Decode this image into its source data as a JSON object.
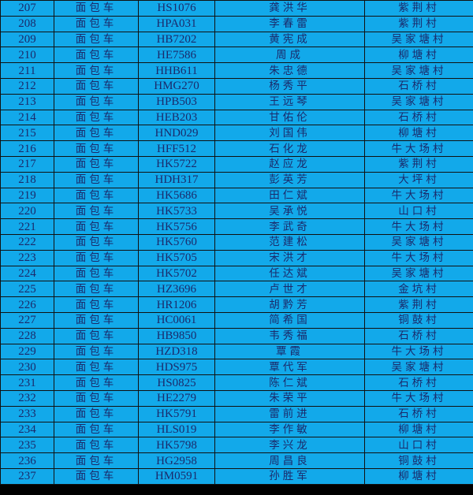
{
  "table": {
    "rows": [
      {
        "no": "207",
        "type": "面包车",
        "plate": "HS1076",
        "name": "龚洪华",
        "village": "紫荆村"
      },
      {
        "no": "208",
        "type": "面包车",
        "plate": "HPA031",
        "name": "李春雷",
        "village": "紫荆村"
      },
      {
        "no": "209",
        "type": "面包车",
        "plate": "HB7202",
        "name": "黄宪成",
        "village": "吴家塘村"
      },
      {
        "no": "210",
        "type": "面包车",
        "plate": "HE7586",
        "name": "周成",
        "village": "柳塘村"
      },
      {
        "no": "211",
        "type": "面包车",
        "plate": "HHB611",
        "name": "朱忠德",
        "village": "吴家塘村"
      },
      {
        "no": "212",
        "type": "面包车",
        "plate": "HMG270",
        "name": "杨秀平",
        "village": "石桥村"
      },
      {
        "no": "213",
        "type": "面包车",
        "plate": "HPB503",
        "name": "王远琴",
        "village": "吴家塘村"
      },
      {
        "no": "214",
        "type": "面包车",
        "plate": "HEB203",
        "name": "甘佑伦",
        "village": "石桥村"
      },
      {
        "no": "215",
        "type": "面包车",
        "plate": "HND029",
        "name": "刘国伟",
        "village": "柳塘村"
      },
      {
        "no": "216",
        "type": "面包车",
        "plate": "HFF512",
        "name": "石化龙",
        "village": "牛大场村"
      },
      {
        "no": "217",
        "type": "面包车",
        "plate": "HK5722",
        "name": "赵应龙",
        "village": "紫荆村"
      },
      {
        "no": "218",
        "type": "面包车",
        "plate": "HDH317",
        "name": "彭英芳",
        "village": "大坪村"
      },
      {
        "no": "219",
        "type": "面包车",
        "plate": "HK5686",
        "name": "田仁斌",
        "village": "牛大场村"
      },
      {
        "no": "220",
        "type": "面包车",
        "plate": "HK5733",
        "name": "吴承悦",
        "village": "山口村"
      },
      {
        "no": "221",
        "type": "面包车",
        "plate": "HK5756",
        "name": "李武奇",
        "village": "牛大场村"
      },
      {
        "no": "222",
        "type": "面包车",
        "plate": "HK5760",
        "name": "范建松",
        "village": "吴家塘村"
      },
      {
        "no": "223",
        "type": "面包车",
        "plate": "HK5705",
        "name": "宋洪才",
        "village": "牛大场村"
      },
      {
        "no": "224",
        "type": "面包车",
        "plate": "HK5702",
        "name": "任达斌",
        "village": "吴家塘村"
      },
      {
        "no": "225",
        "type": "面包车",
        "plate": "HZ3696",
        "name": "卢世才",
        "village": "金坑村"
      },
      {
        "no": "226",
        "type": "面包车",
        "plate": "HR1206",
        "name": "胡黔芳",
        "village": "紫荆村"
      },
      {
        "no": "227",
        "type": "面包车",
        "plate": "HC0061",
        "name": "简希国",
        "village": "铜鼓村"
      },
      {
        "no": "228",
        "type": "面包车",
        "plate": "HB9850",
        "name": "韦秀福",
        "village": "石桥村"
      },
      {
        "no": "229",
        "type": "面包车",
        "plate": "HZD318",
        "name": "覃霞",
        "village": "牛大场村"
      },
      {
        "no": "230",
        "type": "面包车",
        "plate": "HDS975",
        "name": "覃代军",
        "village": "吴家塘村"
      },
      {
        "no": "231",
        "type": "面包车",
        "plate": "HS0825",
        "name": "陈仁斌",
        "village": "石桥村"
      },
      {
        "no": "232",
        "type": "面包车",
        "plate": "HE2279",
        "name": "朱荣平",
        "village": "牛大场村"
      },
      {
        "no": "233",
        "type": "面包车",
        "plate": "HK5791",
        "name": "雷前进",
        "village": "石桥村"
      },
      {
        "no": "234",
        "type": "面包车",
        "plate": "HLS019",
        "name": "李作敏",
        "village": "柳塘村"
      },
      {
        "no": "235",
        "type": "面包车",
        "plate": "HK5798",
        "name": "李兴龙",
        "village": "山口村"
      },
      {
        "no": "236",
        "type": "面包车",
        "plate": "HG2958",
        "name": "周昌良",
        "village": "铜鼓村"
      },
      {
        "no": "237",
        "type": "面包车",
        "plate": "HM0591",
        "name": "孙胜军",
        "village": "柳塘村"
      }
    ]
  },
  "colors": {
    "cell_background": "#12a9ea",
    "text": "#1b2a6b",
    "grid": "#111111"
  }
}
